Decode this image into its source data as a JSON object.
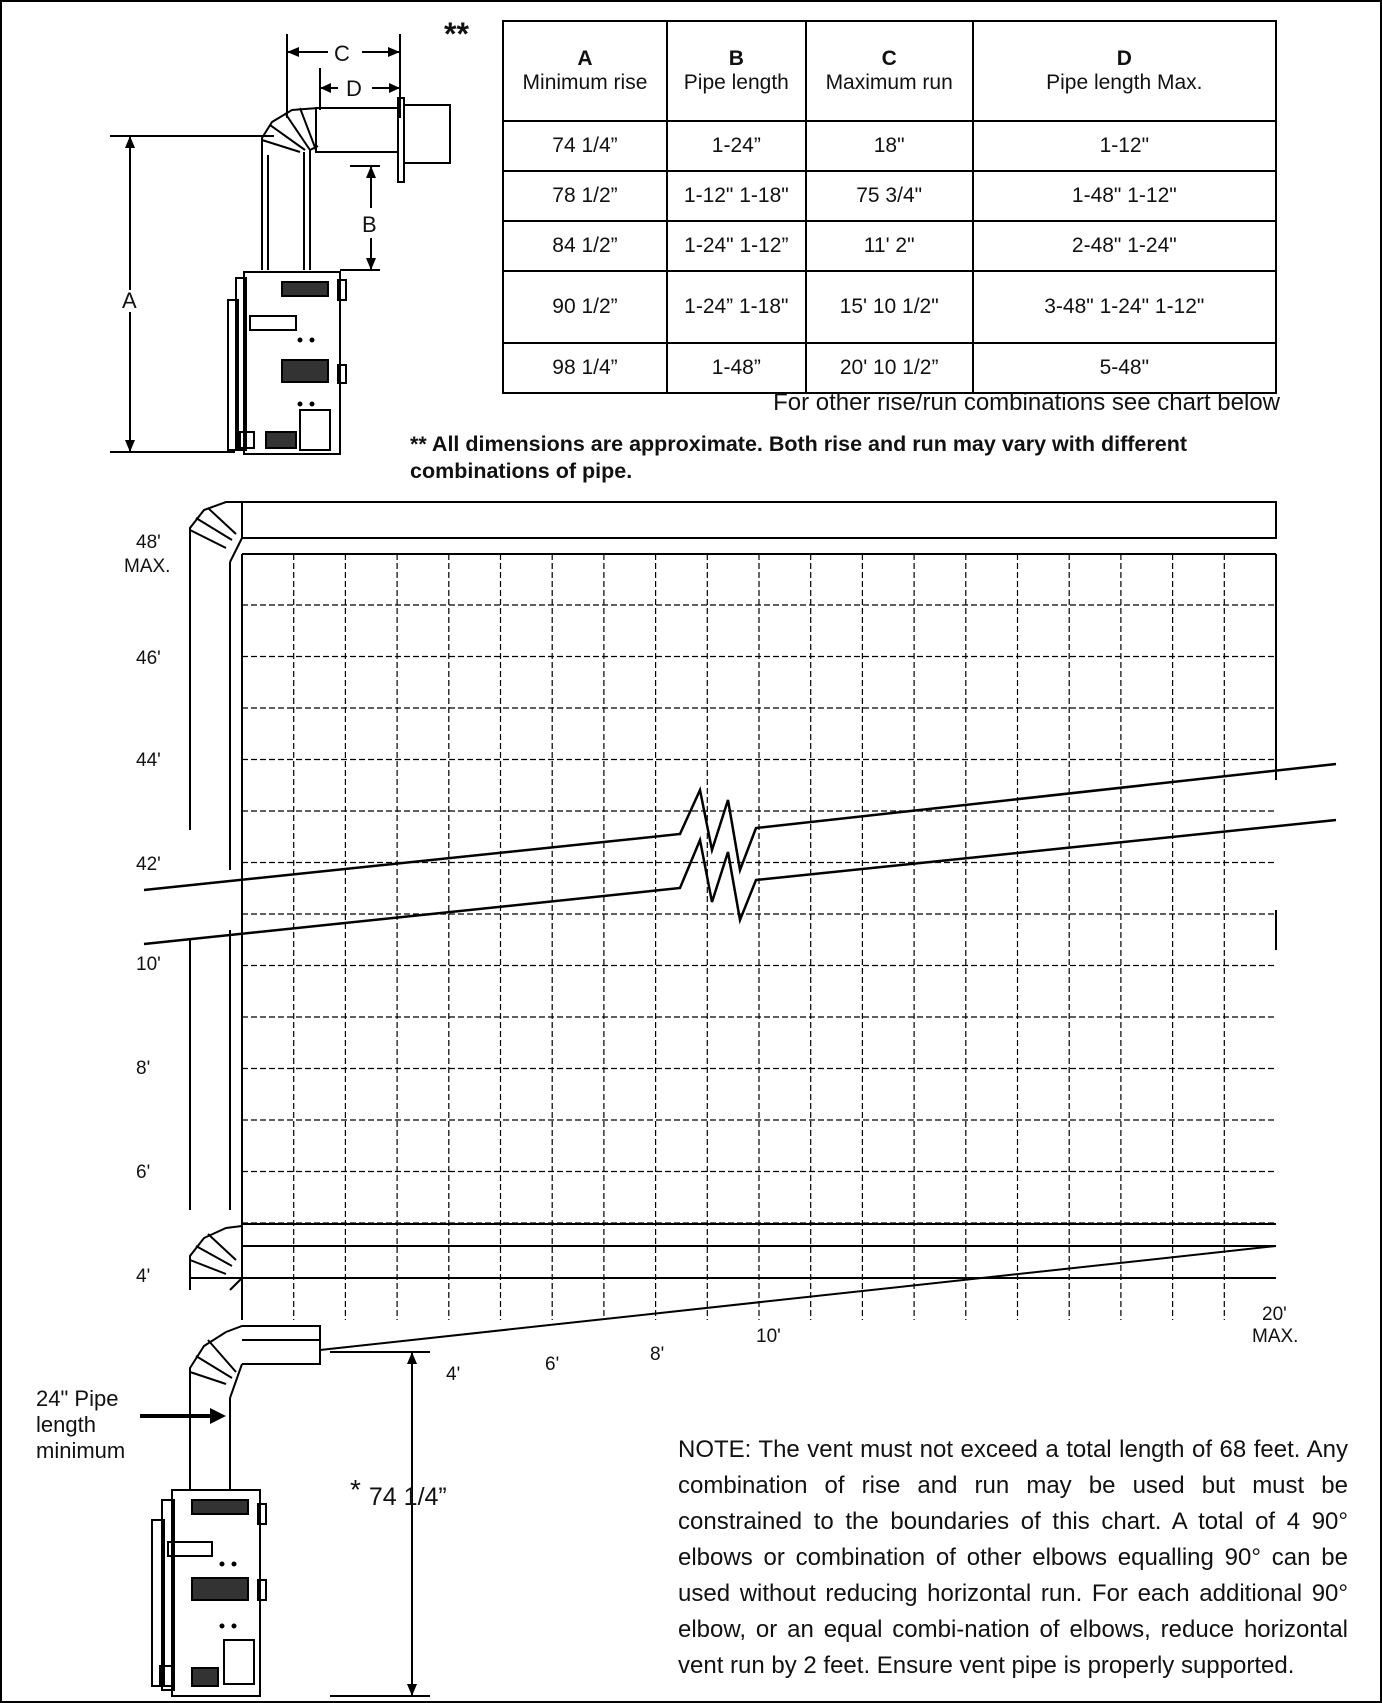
{
  "top_diagram": {
    "labels": {
      "a": "A",
      "b": "B",
      "c": "C",
      "d": "D"
    },
    "stars": "**"
  },
  "table": {
    "headers": [
      {
        "letter": "A",
        "name": "Minimum rise"
      },
      {
        "letter": "B",
        "name": "Pipe length"
      },
      {
        "letter": "C",
        "name": "Maximum run"
      },
      {
        "letter": "D",
        "name": "Pipe length Max."
      }
    ],
    "rows": [
      [
        "74 1/4”",
        "1-24”",
        "18\"",
        "1-12\""
      ],
      [
        "78 1/2”",
        "1-12\" 1-18\"",
        "75 3/4\"",
        "1-48\" 1-12\""
      ],
      [
        "84 1/2”",
        "1-24\" 1-12”",
        "11' 2\"",
        "2-48\" 1-24\""
      ],
      [
        "90 1/2”",
        "1-24” 1-18\"",
        "15' 10 1/2\"",
        "3-48\" 1-24\" 1-12\""
      ],
      [
        "98 1/4”",
        "1-48”",
        "20' 10 1/2”",
        "5-48\""
      ]
    ]
  },
  "notes": {
    "other_combinations": "For other rise/run combinations see chart below",
    "approx_stars": "**",
    "approximate": "All dimensions are approximate. Both rise and run may vary with different combinations of pipe.",
    "vent": "NOTE: The vent must not exceed a total length of 68 feet. Any combination of rise and run may be used but must be constrained to the boundaries of this chart. A total of 4 90° elbows or combination of other elbows equalling 90° can be used without reducing horizontal run. For each additional 90° elbow, or an equal combi-nation of elbows, reduce horizontal vent run by 2 feet. Ensure vent pipe is properly supported."
  },
  "chart_data": {
    "type": "table",
    "y_axis": {
      "ticks_upper": [
        "48'",
        "46'",
        "44'",
        "42'"
      ],
      "max_suffix": "MAX.",
      "ticks_lower": [
        "10'",
        "8'",
        "6'",
        "4'"
      ],
      "break": true
    },
    "x_axis": {
      "ticks": [
        "4'",
        "6'",
        "8'",
        "10'",
        "20'"
      ],
      "max_suffix": "MAX.",
      "break": true
    },
    "grid": true
  },
  "bottom_labels": {
    "pipe_min": "24\" Pipe length minimum",
    "height_asterisk": "*",
    "height": "74 1/4”"
  }
}
